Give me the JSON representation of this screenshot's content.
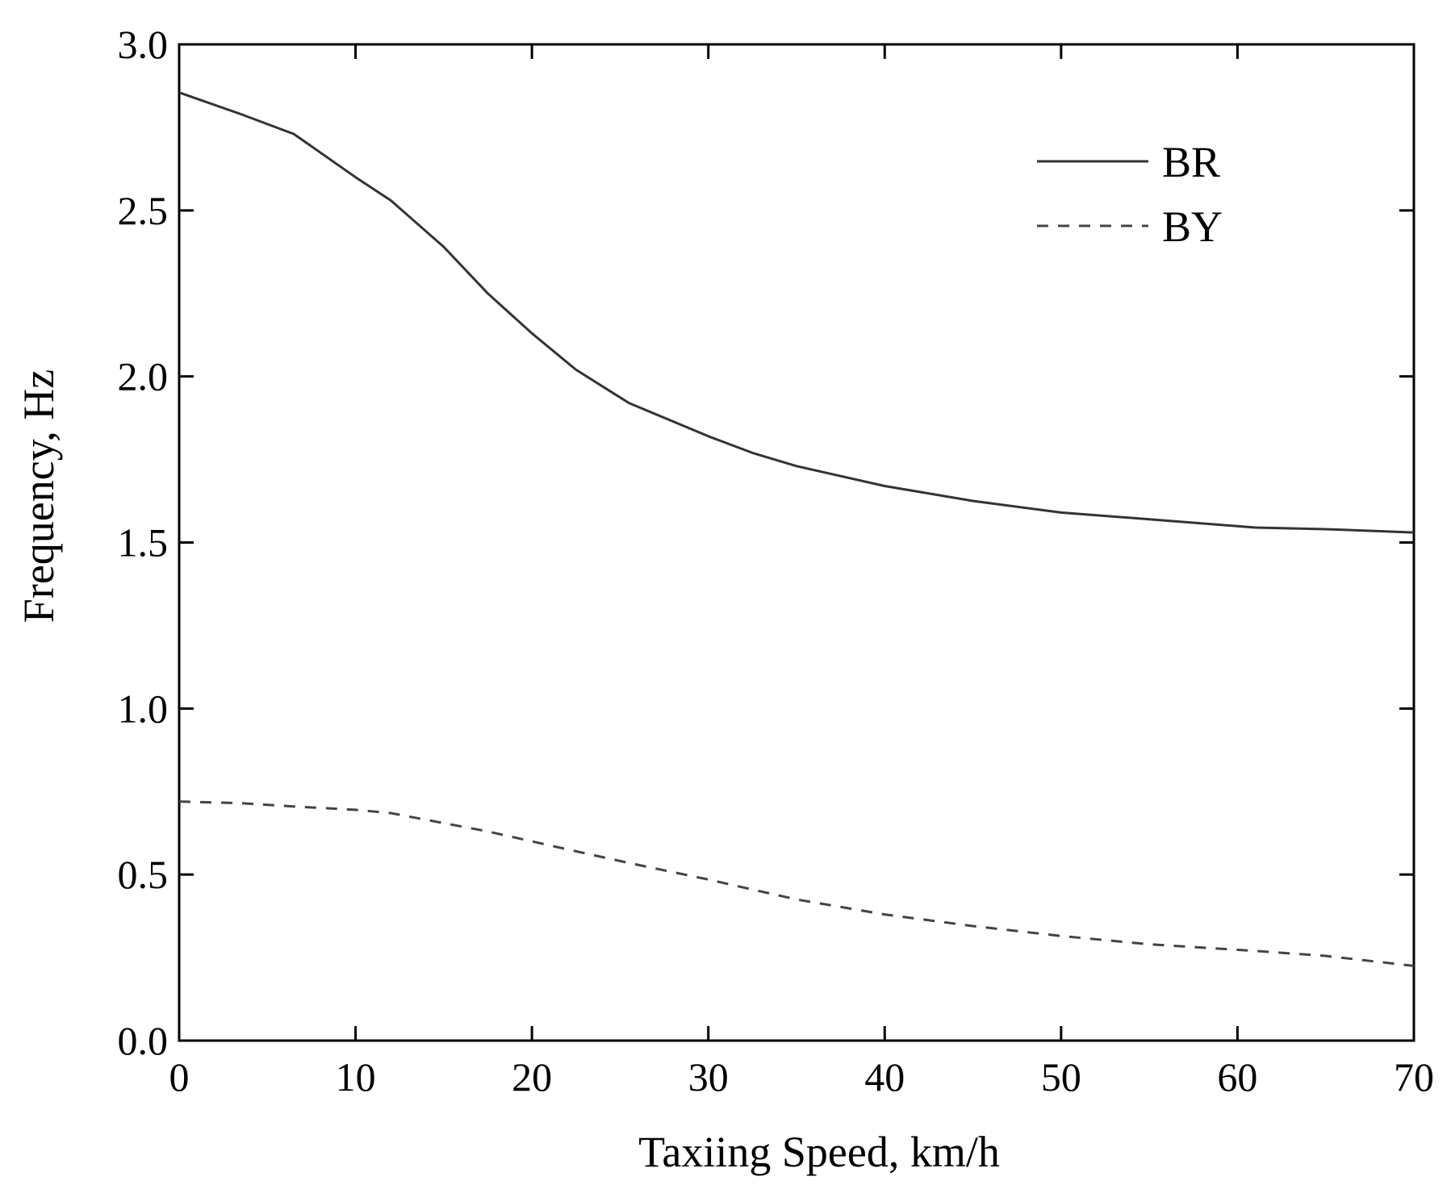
{
  "chart_data": {
    "type": "line",
    "title": "",
    "xlabel": "Taxiing Speed, km/h",
    "ylabel": "Frequency, Hz",
    "xlim": [
      0,
      70
    ],
    "ylim": [
      0.0,
      3.0
    ],
    "x_ticks": [
      0,
      10,
      20,
      30,
      40,
      50,
      60,
      70
    ],
    "x_tick_labels": [
      "0",
      "10",
      "20",
      "30",
      "40",
      "50",
      "60",
      "70"
    ],
    "y_ticks": [
      0.0,
      0.5,
      1.0,
      1.5,
      2.0,
      2.5,
      3.0
    ],
    "y_tick_labels": [
      "0.0",
      "0.5",
      "1.0",
      "1.5",
      "2.0",
      "2.5",
      "3.0"
    ],
    "grid": false,
    "legend_position": "top-right",
    "x": [
      0,
      3.5,
      6.5,
      10,
      12,
      15,
      17.5,
      20,
      22.5,
      25.5,
      30,
      32.5,
      35,
      40,
      45,
      50,
      55,
      61,
      65,
      70
    ],
    "series": [
      {
        "name": "BR",
        "line_style": "solid",
        "color": "#333333",
        "values": [
          2.855,
          2.79,
          2.73,
          2.6,
          2.53,
          2.39,
          2.25,
          2.13,
          2.02,
          1.92,
          1.82,
          1.77,
          1.73,
          1.67,
          1.625,
          1.59,
          1.57,
          1.545,
          1.54,
          1.53
        ]
      },
      {
        "name": "BY",
        "line_style": "dashed",
        "color": "#444444",
        "values": [
          0.72,
          0.715,
          0.705,
          0.695,
          0.685,
          0.655,
          0.63,
          0.6,
          0.57,
          0.535,
          0.485,
          0.455,
          0.425,
          0.38,
          0.345,
          0.315,
          0.29,
          0.27,
          0.255,
          0.225
        ]
      }
    ]
  }
}
